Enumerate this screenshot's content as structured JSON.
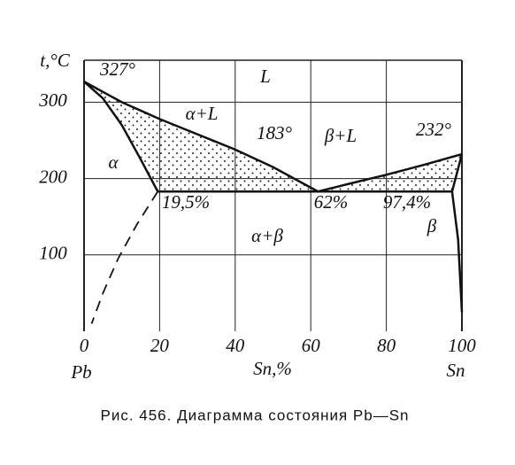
{
  "chart_data": {
    "type": "phase-diagram",
    "xlabel": "Sn,%",
    "ylabel": "t,°C",
    "x_left_label": "Pb",
    "x_right_label": "Sn",
    "caption": "Рис. 456. Диаграмма состояния Pb—Sn",
    "xlim": [
      0,
      100
    ],
    "xticks": [
      0,
      20,
      40,
      60,
      80,
      100
    ],
    "ylim": [
      0,
      355
    ],
    "yticks": [
      100,
      200,
      300
    ],
    "grid": true,
    "color": "#111111",
    "series": [
      {
        "x": [
          0,
          10,
          20,
          30,
          40,
          50,
          61.9
        ],
        "values": [
          327,
          300,
          278,
          258,
          238,
          215,
          183
        ],
        "dashed": false
      },
      {
        "x": [
          61.9,
          70,
          80,
          90,
          100
        ],
        "values": [
          183,
          193,
          205,
          218,
          232
        ],
        "dashed": false
      },
      {
        "x": [
          0,
          5,
          10,
          15,
          19.5
        ],
        "values": [
          327,
          305,
          270,
          225,
          183
        ],
        "dashed": false
      },
      {
        "x": [
          19.5,
          61.9,
          97.4
        ],
        "values": [
          183,
          183,
          183
        ],
        "dashed": false
      },
      {
        "x": [
          97.4,
          100
        ],
        "values": [
          183,
          232
        ],
        "dashed": false
      },
      {
        "x": [
          19.5,
          14,
          9,
          5,
          2
        ],
        "values": [
          183,
          140,
          95,
          50,
          10
        ],
        "dashed": true
      },
      {
        "x": [
          97.4,
          99,
          100
        ],
        "values": [
          183,
          120,
          25
        ],
        "dashed": false
      }
    ],
    "annotations": [
      "327°",
      "L",
      "α+L",
      "183°",
      "β+L",
      "232°",
      "α",
      "19,5%",
      "62%",
      "97,4%",
      "α+β",
      "β"
    ]
  }
}
